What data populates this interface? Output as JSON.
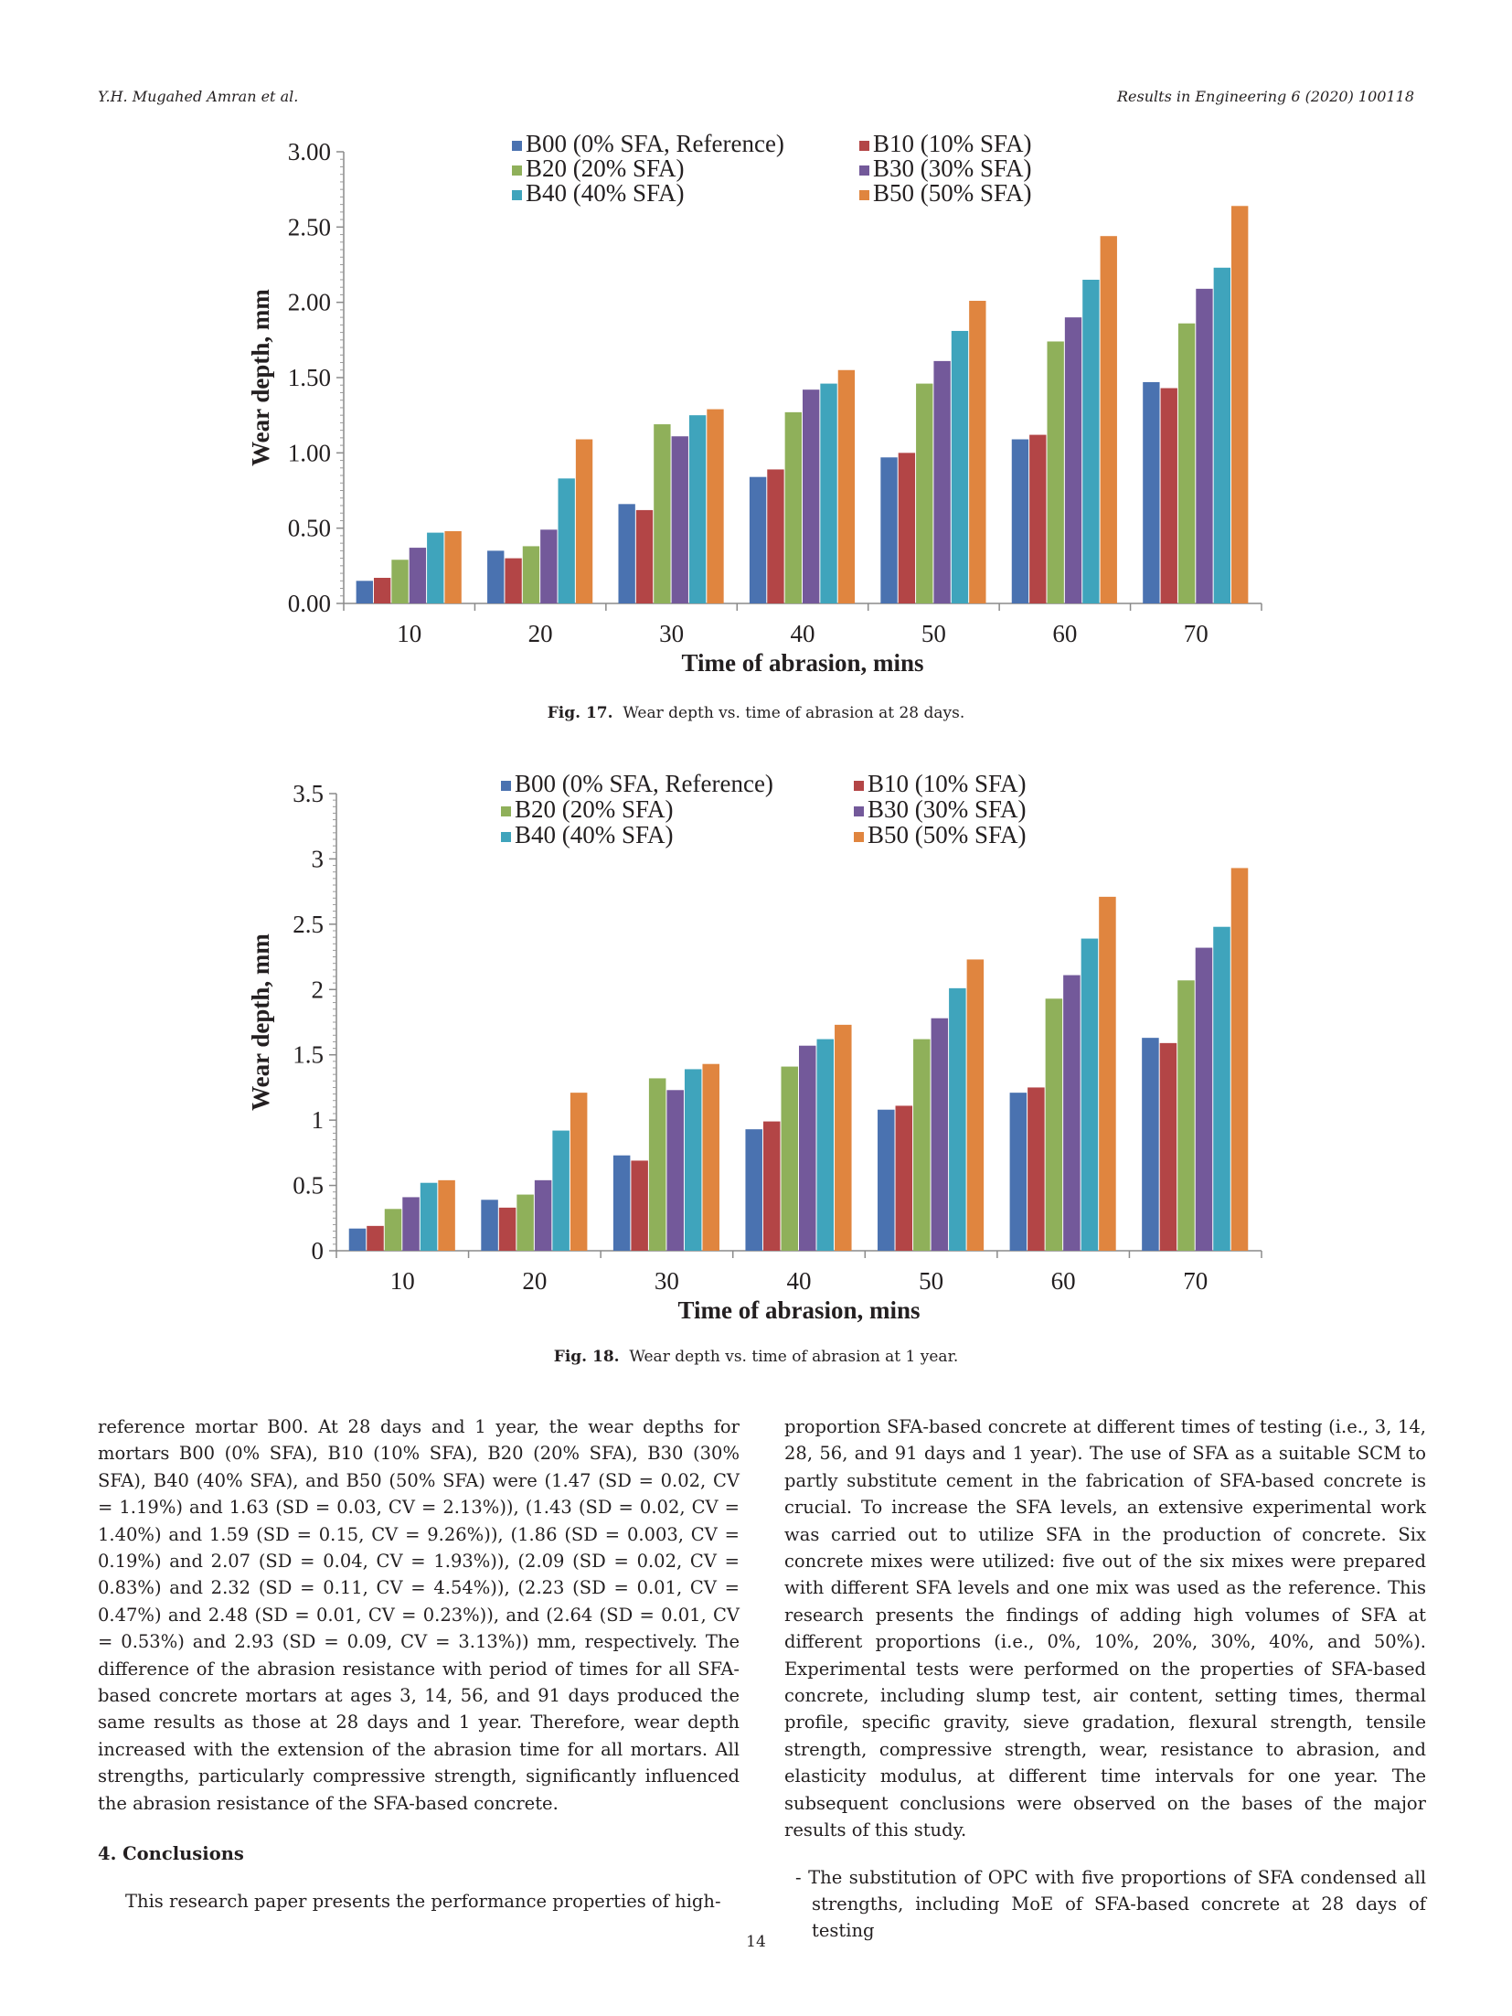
{
  "header": {
    "authors": "Y.H. Mugahed Amran et al.",
    "journal": "Results in Engineering 6 (2020) 100118"
  },
  "chart_data": [
    {
      "type": "bar",
      "categories": [
        "10",
        "20",
        "30",
        "40",
        "50",
        "60",
        "70"
      ],
      "xlabel": "Time of abrasion, mins",
      "ylabel": "Wear depth, mm",
      "ylim": [
        0,
        3
      ],
      "yticks": [
        "0.00",
        "0.50",
        "1.00",
        "1.50",
        "2.00",
        "2.50",
        "3.00"
      ],
      "legend_position": "top",
      "series": [
        {
          "name": "B00 (0% SFA, Reference)",
          "color": "#4a72b0",
          "values": [
            0.15,
            0.35,
            0.66,
            0.84,
            0.97,
            1.09,
            1.47
          ]
        },
        {
          "name": "B10 (10% SFA)",
          "color": "#b34546",
          "values": [
            0.17,
            0.3,
            0.62,
            0.89,
            1.0,
            1.12,
            1.43
          ]
        },
        {
          "name": "B20 (20% SFA)",
          "color": "#8fb05a",
          "values": [
            0.29,
            0.38,
            1.19,
            1.27,
            1.46,
            1.74,
            1.86
          ]
        },
        {
          "name": "B30 (30% SFA)",
          "color": "#73599a",
          "values": [
            0.37,
            0.49,
            1.11,
            1.42,
            1.61,
            1.9,
            2.09
          ]
        },
        {
          "name": "B40 (40% SFA)",
          "color": "#3fa4bc",
          "values": [
            0.47,
            0.83,
            1.25,
            1.46,
            1.81,
            2.15,
            2.23
          ]
        },
        {
          "name": "B50 (50% SFA)",
          "color": "#e0853f",
          "values": [
            0.48,
            1.09,
            1.29,
            1.55,
            2.01,
            2.44,
            2.64
          ]
        }
      ]
    },
    {
      "type": "bar",
      "categories": [
        "10",
        "20",
        "30",
        "40",
        "50",
        "60",
        "70"
      ],
      "xlabel": "Time of abrasion, mins",
      "ylabel": "Wear depth, mm",
      "ylim": [
        0,
        3.5
      ],
      "yticks": [
        "0",
        "0.5",
        "1",
        "1.5",
        "2",
        "2.5",
        "3",
        "3.5"
      ],
      "legend_position": "top",
      "series": [
        {
          "name": "B00 (0% SFA, Reference)",
          "color": "#4a72b0",
          "values": [
            0.17,
            0.39,
            0.73,
            0.93,
            1.08,
            1.21,
            1.63
          ]
        },
        {
          "name": "B10 (10% SFA)",
          "color": "#b34546",
          "values": [
            0.19,
            0.33,
            0.69,
            0.99,
            1.11,
            1.25,
            1.59
          ]
        },
        {
          "name": "B20 (20% SFA)",
          "color": "#8fb05a",
          "values": [
            0.32,
            0.43,
            1.32,
            1.41,
            1.62,
            1.93,
            2.07
          ]
        },
        {
          "name": "B30 (30% SFA)",
          "color": "#73599a",
          "values": [
            0.41,
            0.54,
            1.23,
            1.57,
            1.78,
            2.11,
            2.32
          ]
        },
        {
          "name": "B40 (40% SFA)",
          "color": "#3fa4bc",
          "values": [
            0.52,
            0.92,
            1.39,
            1.62,
            2.01,
            2.39,
            2.48
          ]
        },
        {
          "name": "B50 (50% SFA)",
          "color": "#e0853f",
          "values": [
            0.54,
            1.21,
            1.43,
            1.73,
            2.23,
            2.71,
            2.93
          ]
        }
      ]
    }
  ],
  "captions": [
    {
      "label": "Fig. 17.",
      "text": "Wear depth vs. time of abrasion at 28 days."
    },
    {
      "label": "Fig. 18.",
      "text": "Wear depth vs. time of abrasion at 1 year."
    }
  ],
  "body": {
    "left_paragraph": "reference mortar B00. At 28 days and 1 year, the wear depths for mortars B00 (0% SFA), B10 (10% SFA), B20 (20% SFA), B30 (30% SFA), B40 (40% SFA), and B50 (50% SFA) were (1.47 (SD = 0.02, CV = 1.19%) and 1.63 (SD = 0.03, CV = 2.13%)), (1.43 (SD = 0.02, CV = 1.40%) and 1.59 (SD = 0.15, CV = 9.26%)), (1.86 (SD = 0.003, CV = 0.19%) and 2.07 (SD = 0.04, CV = 1.93%)), (2.09 (SD = 0.02, CV = 0.83%) and 2.32 (SD = 0.11, CV = 4.54%)), (2.23 (SD = 0.01, CV = 0.47%) and 2.48 (SD = 0.01, CV = 0.23%)), and (2.64 (SD = 0.01, CV = 0.53%) and 2.93 (SD = 0.09, CV = 3.13%)) mm, respectively. The difference of the abrasion resistance with period of times for all SFA-based concrete mortars at ages 3, 14, 56, and 91 days produced the same results as those at 28 days and 1 year. Therefore, wear depth increased with the extension of the abrasion time for all mortars. All strengths, particularly compressive strength, significantly influenced the abrasion resistance of the SFA-based concrete.",
    "heading": "4.  Conclusions",
    "left_paragraph_2": "This research paper presents the performance properties of high-",
    "right_paragraph": "proportion SFA-based concrete at different times of testing (i.e., 3, 14, 28, 56, and 91 days and 1 year). The use of SFA as a suitable SCM to partly substitute cement in the fabrication of SFA-based concrete is crucial. To increase the SFA levels, an extensive experimental work was carried out to utilize SFA in the production of concrete. Six concrete mixes were utilized: five out of the six mixes were prepared with different SFA levels and one mix was used as the reference. This research presents the findings of adding high volumes of SFA at different proportions (i.e., 0%, 10%, 20%, 30%, 40%, and 50%). Experimental tests were performed on the properties of SFA-based concrete, including slump test, air content, setting times, thermal profile, specific gravity, sieve gradation, flexural strength, tensile strength, compressive strength, wear, resistance to abrasion, and elasticity modulus, at different time intervals for one year. The subsequent conclusions were observed on the bases of the major results of this study.",
    "bullet": "-  The substitution of OPC with five proportions of SFA condensed all strengths, including MoE of SFA-based concrete at 28 days of testing"
  },
  "page_number": "14"
}
